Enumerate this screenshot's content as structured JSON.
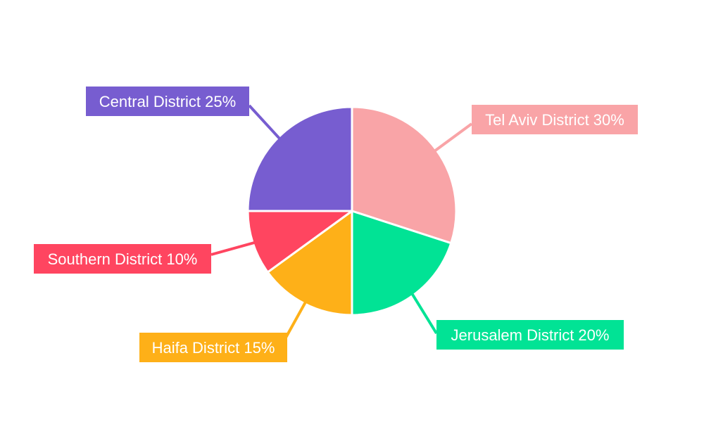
{
  "chart_data": {
    "type": "pie",
    "title": "",
    "slices": [
      {
        "name": "Tel Aviv District",
        "value": 30,
        "label": "Tel Aviv District 30%",
        "color": "#f9a4a7"
      },
      {
        "name": "Jerusalem District",
        "value": 20,
        "label": "Jerusalem District 20%",
        "color": "#01e395"
      },
      {
        "name": "Haifa District",
        "value": 15,
        "label": "Haifa District 15%",
        "color": "#feb018"
      },
      {
        "name": "Southern District",
        "value": 10,
        "label": "Southern District 10%",
        "color": "#ff4560"
      },
      {
        "name": "Central District",
        "value": 25,
        "label": "Central District 25%",
        "color": "#775dd0"
      }
    ],
    "legend": "none",
    "label_style": "callout"
  }
}
